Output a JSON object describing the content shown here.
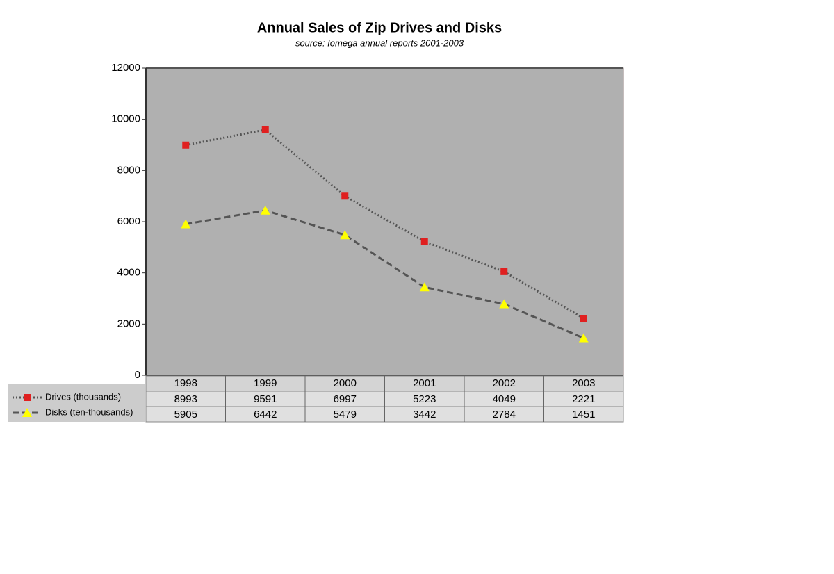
{
  "chart_data": {
    "type": "line",
    "title": "Annual Sales of Zip Drives and Disks",
    "subtitle": "source: Iomega annual reports 2001-2003",
    "categories": [
      "1998",
      "1999",
      "2000",
      "2001",
      "2002",
      "2003"
    ],
    "series": [
      {
        "name": "Drives (thousands)",
        "color": "#e02020",
        "line_color": "#555555",
        "marker": "square",
        "line_style": "dotted",
        "values": [
          8993,
          9591,
          6997,
          5223,
          4049,
          2221
        ]
      },
      {
        "name": "Disks (ten-thousands)",
        "color": "#ffff00",
        "line_color": "#555555",
        "marker": "triangle",
        "line_style": "dashed",
        "values": [
          5905,
          6442,
          5479,
          3442,
          2784,
          1451
        ]
      }
    ],
    "ylim": [
      0,
      12000
    ],
    "yticks": [
      0,
      2000,
      4000,
      6000,
      8000,
      10000,
      12000
    ],
    "grid": false,
    "legend": "bottom-left",
    "data_table": true
  }
}
